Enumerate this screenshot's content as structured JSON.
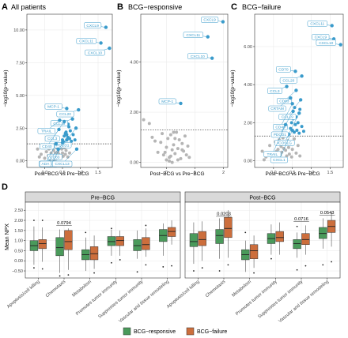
{
  "panels_top": [
    {
      "letter": "A",
      "title": "All patients",
      "xlabel": "Post−BCG vs Pre−BCG",
      "ylabel": "−log10(p−value)",
      "xticks": [
        0.0,
        0.5,
        1.0,
        1.5
      ],
      "xtick_labels": [
        "0.0",
        "0.5",
        "1.0",
        "1.5"
      ],
      "yticks": [
        0,
        2.5,
        5,
        7.5,
        10
      ],
      "ytick_labels": [
        "0.00",
        "2.50",
        "5.00",
        "7.50",
        "10.00"
      ]
    },
    {
      "letter": "B",
      "title": "BCG−responsive",
      "xlabel": "Post−BCG vs Pre−BCG",
      "ylabel": "−log10(p−value)",
      "xticks": [
        0,
        1,
        2
      ],
      "xtick_labels": [
        "0",
        "1",
        "2"
      ],
      "yticks": [
        0,
        2,
        4
      ],
      "ytick_labels": [
        "0.00",
        "2.00",
        "4.00"
      ]
    },
    {
      "letter": "C",
      "title": "BCG−failure",
      "xlabel": "Post−BCG vs Pre−BCG",
      "ylabel": "−log10(p−value)",
      "xticks": [
        0.0,
        0.5,
        1.0,
        1.5
      ],
      "xtick_labels": [
        "0.0",
        "0.5",
        "1.0",
        "1.5"
      ],
      "yticks": [
        0,
        2,
        4,
        6
      ],
      "ytick_labels": [
        "0.00",
        "2.00",
        "4.00",
        "6.00"
      ]
    }
  ],
  "panel_d": {
    "letter": "D",
    "facets": [
      "Pre−BCG",
      "Post−BCG"
    ],
    "ylabel": "Mean NPX",
    "yticks": [
      -0.5,
      0,
      0.5,
      1,
      1.5,
      2,
      2.5
    ],
    "ytick_labels": [
      "−0.50",
      "0.00",
      "0.50",
      "1.00",
      "1.50",
      "2.00",
      "2.50"
    ],
    "categories": [
      "Apoptosis/cell killing",
      "Chemotaxis",
      "Metabolism",
      "Promotes tumor immunity",
      "Suppresses tumor immunity",
      "Vascular and tissue remodeling"
    ],
    "legend": [
      "BCG−responsive",
      "BCG−failure"
    ]
  },
  "chart_data": [
    {
      "type": "scatter",
      "title": "All patients",
      "xlabel": "Post−BCG vs Pre−BCG",
      "ylabel": "−log10(p−value)",
      "xlim": [
        -0.5,
        1.9
      ],
      "ylim": [
        -0.5,
        11.2
      ],
      "threshold": 1.3,
      "labeled_points": [
        {
          "label": "CXCL9",
          "x": 1.72,
          "y": 10.2
        },
        {
          "label": "CXCL11",
          "x": 1.58,
          "y": 9.0
        },
        {
          "label": "CXCL10",
          "x": 1.82,
          "y": 8.6
        },
        {
          "label": "MCP-1",
          "x": 0.62,
          "y": 4.0
        },
        {
          "label": "CCL20",
          "x": 0.95,
          "y": 3.9
        },
        {
          "label": "CCL19",
          "x": 0.78,
          "y": 3.2
        },
        {
          "label": "TRAIL",
          "x": 0.42,
          "y": 3.1
        },
        {
          "label": "CCL3",
          "x": 0.55,
          "y": 3.0
        },
        {
          "label": "PDCD1",
          "x": 0.88,
          "y": 2.5
        },
        {
          "label": "CD40",
          "x": 0.4,
          "y": 2.4
        },
        {
          "label": "CD83",
          "x": 0.62,
          "y": 1.6
        },
        {
          "label": "GZMA",
          "x": 0.38,
          "y": 0.9
        },
        {
          "label": "CD4",
          "x": 0.5,
          "y": 1.4
        },
        {
          "label": "CXCL13",
          "x": 0.9,
          "y": 0.9
        },
        {
          "label": "ADA",
          "x": 0.32,
          "y": 1.3
        }
      ],
      "gray_points": [
        [
          -0.15,
          0.3
        ],
        [
          -0.1,
          0.5
        ],
        [
          0.0,
          0.2
        ],
        [
          0.05,
          0.7
        ],
        [
          0.1,
          0.4
        ],
        [
          0.12,
          0.9
        ],
        [
          0.18,
          0.6
        ],
        [
          0.2,
          0.25
        ],
        [
          0.22,
          1.1
        ],
        [
          0.25,
          0.8
        ],
        [
          0.28,
          0.4
        ],
        [
          0.3,
          0.6
        ],
        [
          0.33,
          1.0
        ],
        [
          0.35,
          0.3
        ],
        [
          0.37,
          0.7
        ],
        [
          0.4,
          0.5
        ],
        [
          0.42,
          1.2
        ],
        [
          0.45,
          0.2
        ],
        [
          0.48,
          0.9
        ],
        [
          0.5,
          0.6
        ],
        [
          0.52,
          0.35
        ],
        [
          0.55,
          1.0
        ],
        [
          0.58,
          0.5
        ],
        [
          0.6,
          0.8
        ],
        [
          0.65,
          0.3
        ],
        [
          0.7,
          0.6
        ],
        [
          -0.2,
          0.9
        ],
        [
          0.08,
          1.15
        ],
        [
          0.15,
          0.1
        ],
        [
          0.26,
          0.05
        ],
        [
          -0.05,
          1.0
        ],
        [
          0.32,
          0.15
        ]
      ],
      "blue_points": [
        [
          0.5,
          1.6
        ],
        [
          0.55,
          1.9
        ],
        [
          0.58,
          2.1
        ],
        [
          0.6,
          2.2
        ],
        [
          0.62,
          2.0
        ],
        [
          0.65,
          1.8
        ],
        [
          0.68,
          2.6
        ],
        [
          0.7,
          1.7
        ],
        [
          0.72,
          2.3
        ],
        [
          0.75,
          1.5
        ],
        [
          0.53,
          1.45
        ],
        [
          0.66,
          2.8
        ],
        [
          0.8,
          2.0
        ],
        [
          0.85,
          1.6
        ]
      ]
    },
    {
      "type": "scatter",
      "title": "BCG−responsive",
      "xlabel": "Post−BCG vs Pre−BCG",
      "ylabel": "−log10(p−value)",
      "xlim": [
        -0.9,
        2.15
      ],
      "ylim": [
        -0.2,
        5.9
      ],
      "threshold": 1.3,
      "labeled_points": [
        {
          "label": "CXCL9",
          "x": 1.98,
          "y": 5.6
        },
        {
          "label": "CXCL11",
          "x": 1.45,
          "y": 5.0
        },
        {
          "label": "CXCL10",
          "x": 1.6,
          "y": 4.15
        },
        {
          "label": "MCP-1",
          "x": 0.5,
          "y": 2.35
        }
      ],
      "gray_points": [
        [
          -0.8,
          1.7
        ],
        [
          -0.6,
          1.55
        ],
        [
          -0.5,
          1.0
        ],
        [
          -0.4,
          0.85
        ],
        [
          -0.3,
          0.4
        ],
        [
          -0.2,
          0.8
        ],
        [
          -0.1,
          0.3
        ],
        [
          0.0,
          0.6
        ],
        [
          0.05,
          0.95
        ],
        [
          0.1,
          0.2
        ],
        [
          0.15,
          1.1
        ],
        [
          0.2,
          0.5
        ],
        [
          0.25,
          0.7
        ],
        [
          0.3,
          0.35
        ],
        [
          0.35,
          1.2
        ],
        [
          0.4,
          0.55
        ],
        [
          0.45,
          0.9
        ],
        [
          0.5,
          0.15
        ],
        [
          0.55,
          0.75
        ],
        [
          0.6,
          0.45
        ],
        [
          0.65,
          1.05
        ],
        [
          0.7,
          0.3
        ],
        [
          0.75,
          0.65
        ],
        [
          0.1,
          0.05
        ],
        [
          0.0,
          0.1
        ],
        [
          0.2,
          0.0
        ],
        [
          -0.05,
          0.4
        ],
        [
          0.3,
          0.95
        ],
        [
          0.4,
          0.1
        ],
        [
          0.15,
          0.25
        ],
        [
          0.25,
          1.2
        ],
        [
          0.55,
          0.5
        ],
        [
          0.8,
          0.2
        ],
        [
          -0.15,
          1.15
        ]
      ]
    },
    {
      "type": "scatter",
      "title": "BCG−failure",
      "xlabel": "Post−BCG vs Pre−BCG",
      "ylabel": "−log10(p−value)",
      "xlim": [
        -0.5,
        1.85
      ],
      "ylim": [
        -0.35,
        7.7
      ],
      "threshold": 1.3,
      "labeled_points": [
        {
          "label": "CXCL11",
          "x": 1.55,
          "y": 7.1
        },
        {
          "label": "CXCL9",
          "x": 1.6,
          "y": 6.4
        },
        {
          "label": "CXCL10",
          "x": 1.78,
          "y": 6.1
        },
        {
          "label": "CD70",
          "x": 0.58,
          "y": 4.7
        },
        {
          "label": "CCL20",
          "x": 0.75,
          "y": 4.45
        },
        {
          "label": "CCL3",
          "x": 0.35,
          "y": 3.9
        },
        {
          "label": "CD83",
          "x": 0.6,
          "y": 3.7
        },
        {
          "label": "CRTAM",
          "x": 0.45,
          "y": 3.3
        },
        {
          "label": "CCL19",
          "x": 0.72,
          "y": 3.2
        },
        {
          "label": "CD40",
          "x": 0.5,
          "y": 3.0
        },
        {
          "label": "PDCD1",
          "x": 0.52,
          "y": 2.6
        },
        {
          "label": "ICOSLG",
          "x": 0.68,
          "y": 2.5
        },
        {
          "label": "TRAIL",
          "x": 0.32,
          "y": 1.9
        },
        {
          "label": "CXCL1",
          "x": 0.5,
          "y": 1.6
        }
      ],
      "gray_points": [
        [
          -0.3,
          0.5
        ],
        [
          -0.2,
          0.2
        ],
        [
          -0.1,
          0.8
        ],
        [
          0.0,
          0.4
        ],
        [
          0.05,
          1.0
        ],
        [
          0.1,
          0.15
        ],
        [
          0.12,
          0.6
        ],
        [
          0.15,
          1.1
        ],
        [
          0.18,
          0.3
        ],
        [
          0.2,
          0.75
        ],
        [
          0.22,
          0.45
        ],
        [
          0.25,
          1.2
        ],
        [
          0.28,
          0.1
        ],
        [
          0.3,
          0.9
        ],
        [
          0.32,
          0.55
        ],
        [
          0.35,
          0.25
        ],
        [
          0.38,
          1.05
        ],
        [
          0.4,
          0.7
        ],
        [
          0.42,
          0.35
        ],
        [
          0.45,
          0.95
        ],
        [
          0.48,
          0.2
        ],
        [
          0.5,
          0.6
        ],
        [
          0.55,
          1.15
        ],
        [
          0.6,
          0.4
        ],
        [
          0.65,
          0.8
        ],
        [
          0.7,
          0.25
        ],
        [
          -0.25,
          0.05
        ],
        [
          0.08,
          0.5
        ],
        [
          0.27,
          0.65
        ],
        [
          0.14,
          0.0
        ]
      ],
      "blue_points": [
        [
          0.4,
          1.4
        ],
        [
          0.45,
          1.7
        ],
        [
          0.48,
          2.0
        ],
        [
          0.52,
          2.2
        ],
        [
          0.55,
          1.5
        ],
        [
          0.58,
          1.9
        ],
        [
          0.6,
          2.3
        ],
        [
          0.62,
          1.6
        ],
        [
          0.65,
          2.0
        ],
        [
          0.68,
          1.45
        ],
        [
          0.7,
          2.7
        ],
        [
          0.75,
          1.8
        ],
        [
          0.8,
          1.55
        ],
        [
          0.44,
          2.35
        ],
        [
          0.56,
          2.8
        ]
      ]
    },
    {
      "type": "box",
      "ylabel": "Mean NPX",
      "ylim": [
        -0.85,
        2.9
      ],
      "facets": [
        "Pre−BCG",
        "Post−BCG"
      ],
      "categories": [
        "Apoptosis/cell killing",
        "Chemotaxis",
        "Metabolism",
        "Promotes tumor immunity",
        "Suppresses tumor immunity",
        "Vascular and tissue remodeling"
      ],
      "series": [
        {
          "name": "BCG−responsive",
          "color": "#4a9a5b"
        },
        {
          "name": "BCG−failure",
          "color": "#cc6e3c"
        }
      ],
      "annotations": [
        {
          "facet": 0,
          "category": 1,
          "text": "0.0794",
          "y": 1.75
        },
        {
          "facet": 1,
          "category": 1,
          "text": "0.0203",
          "y": 2.2
        },
        {
          "facet": 1,
          "category": 4,
          "text": "0.0716",
          "y": 1.95
        },
        {
          "facet": 1,
          "category": 5,
          "text": "0.0543",
          "y": 2.25
        }
      ],
      "boxes": [
        [
          [
            {
              "min": -0.2,
              "q1": 0.5,
              "median": 0.75,
              "q3": 1.0,
              "max": 1.7,
              "outliers": [
                -0.35,
                2.0
              ]
            },
            {
              "min": -0.05,
              "q1": 0.6,
              "median": 0.85,
              "q3": 1.05,
              "max": 1.65,
              "outliers": [
                -0.4,
                2.0
              ]
            }
          ],
          [
            {
              "min": -0.6,
              "q1": 0.25,
              "median": 0.65,
              "q3": 1.15,
              "max": 1.55,
              "outliers": [
                -0.75
              ]
            },
            {
              "min": -0.45,
              "q1": 0.55,
              "median": 0.95,
              "q3": 1.5,
              "max": 1.6,
              "outliers": [
                -0.7
              ]
            }
          ],
          [
            {
              "min": -0.5,
              "q1": 0.05,
              "median": 0.3,
              "q3": 0.55,
              "max": 1.15,
              "outliers": [
                1.4
              ]
            },
            {
              "min": -0.4,
              "q1": 0.05,
              "median": 0.35,
              "q3": 0.7,
              "max": 1.25,
              "outliers": [
                -0.6
              ]
            }
          ],
          [
            {
              "min": 0.25,
              "q1": 0.75,
              "median": 0.95,
              "q3": 1.2,
              "max": 1.55,
              "outliers": [
                -0.1,
                1.6
              ]
            },
            {
              "min": 0.25,
              "q1": 0.75,
              "median": 1.0,
              "q3": 1.2,
              "max": 1.5,
              "outliers": [
                0.05
              ]
            }
          ],
          [
            {
              "min": 0.1,
              "q1": 0.5,
              "median": 0.75,
              "q3": 1.05,
              "max": 1.5,
              "outliers": [
                -0.55
              ]
            },
            {
              "min": 0.2,
              "q1": 0.55,
              "median": 0.8,
              "q3": 1.15,
              "max": 1.6,
              "outliers": [
                -0.2,
                1.75
              ]
            }
          ],
          [
            {
              "min": 0.25,
              "q1": 0.95,
              "median": 1.25,
              "q3": 1.55,
              "max": 1.85,
              "outliers": [
                -0.3
              ]
            },
            {
              "min": 0.8,
              "q1": 1.2,
              "median": 1.45,
              "q3": 1.65,
              "max": 2.0,
              "outliers": [
                -0.25
              ]
            }
          ]
        ],
        [
          [
            {
              "min": -0.15,
              "q1": 0.7,
              "median": 0.95,
              "q3": 1.35,
              "max": 1.9,
              "outliers": [
                -0.5
              ]
            },
            {
              "min": 0.0,
              "q1": 0.75,
              "median": 1.05,
              "q3": 1.45,
              "max": 1.95,
              "outliers": [
                -0.35
              ]
            }
          ],
          [
            {
              "min": 0.1,
              "q1": 0.85,
              "median": 1.25,
              "q3": 1.55,
              "max": 2.1,
              "outliers": [
                -0.5
              ]
            },
            {
              "min": 0.15,
              "q1": 1.15,
              "median": 1.6,
              "q3": 2.15,
              "max": 2.5,
              "outliers": [
                -0.2
              ]
            }
          ],
          [
            {
              "min": -0.55,
              "q1": 0.05,
              "median": 0.3,
              "q3": 0.55,
              "max": 1.0,
              "outliers": [
                1.4
              ]
            },
            {
              "min": -0.35,
              "q1": 0.1,
              "median": 0.5,
              "q3": 0.8,
              "max": 1.25,
              "outliers": [
                -0.6
              ]
            }
          ],
          [
            {
              "min": 0.3,
              "q1": 0.85,
              "median": 1.1,
              "q3": 1.35,
              "max": 1.8,
              "outliers": [
                0.1
              ]
            },
            {
              "min": 0.3,
              "q1": 0.95,
              "median": 1.15,
              "q3": 1.45,
              "max": 1.9,
              "outliers": []
            }
          ],
          [
            {
              "min": 0.15,
              "q1": 0.6,
              "median": 0.85,
              "q3": 1.05,
              "max": 1.4,
              "outliers": [
                -0.45,
                1.7
              ]
            },
            {
              "min": 0.3,
              "q1": 0.8,
              "median": 1.05,
              "q3": 1.35,
              "max": 1.75,
              "outliers": [
                -0.25
              ]
            }
          ],
          [
            {
              "min": 0.6,
              "q1": 1.1,
              "median": 1.35,
              "q3": 1.65,
              "max": 2.1,
              "outliers": [
                -0.2
              ]
            },
            {
              "min": 0.7,
              "q1": 1.4,
              "median": 1.7,
              "q3": 2.0,
              "max": 2.4,
              "outliers": [
                -0.05
              ]
            }
          ]
        ]
      ]
    }
  ]
}
